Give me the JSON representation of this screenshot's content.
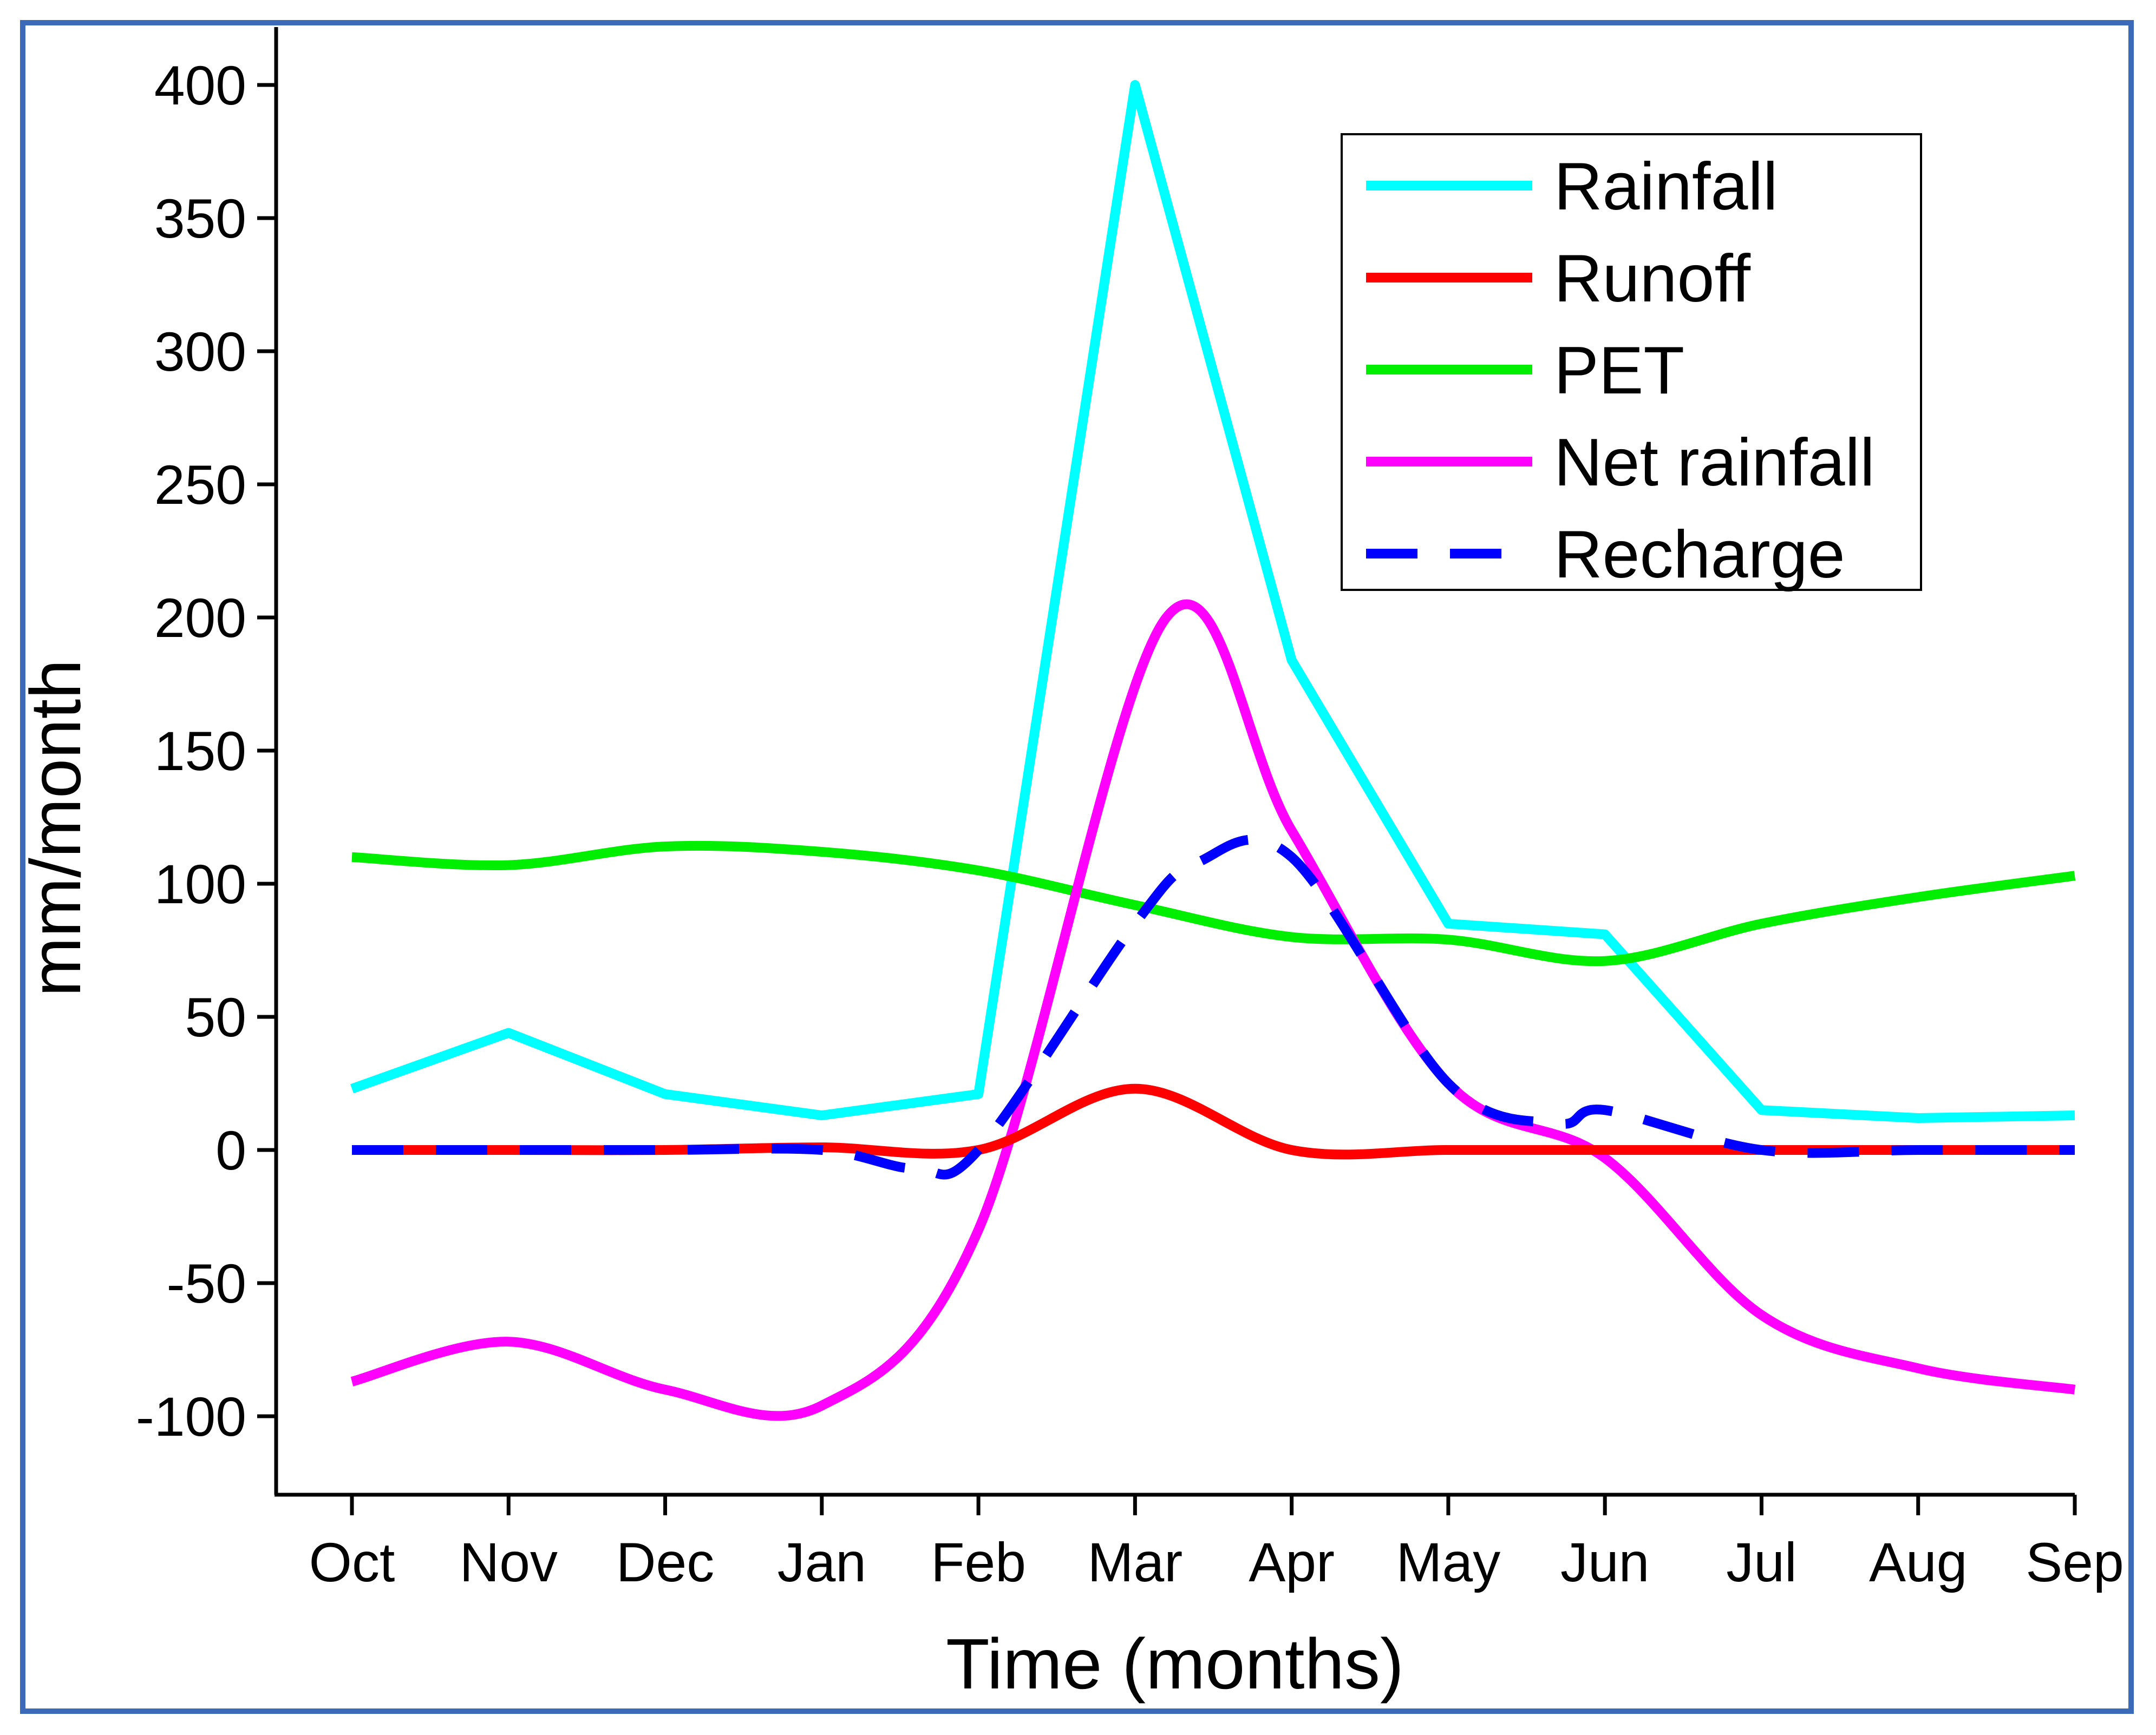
{
  "chart_data": {
    "type": "line",
    "title": "",
    "xlabel": "Time (months)",
    "ylabel": "mm/month",
    "categories": [
      "Oct",
      "Nov",
      "Dec",
      "Jan",
      "Feb",
      "Mar",
      "Apr",
      "May",
      "Jun",
      "Jul",
      "Aug",
      "Sep"
    ],
    "ylim": [
      -130,
      420
    ],
    "yticks": [
      -100,
      -50,
      0,
      50,
      100,
      150,
      200,
      250,
      300,
      350,
      400
    ],
    "grid": false,
    "legend_position": "top-right",
    "series": [
      {
        "name": "Rainfall",
        "color": "#00ffff",
        "style": "solid",
        "smooth": false,
        "points": [
          [
            0,
            23
          ],
          [
            1,
            44
          ],
          [
            2,
            21
          ],
          [
            3,
            13
          ],
          [
            4,
            21
          ],
          [
            5,
            400
          ],
          [
            6,
            184
          ],
          [
            7,
            85
          ],
          [
            8,
            81
          ],
          [
            9,
            15
          ],
          [
            10,
            12
          ],
          [
            11,
            13
          ]
        ]
      },
      {
        "name": "Runoff",
        "color": "#ff0000",
        "style": "solid",
        "smooth": true,
        "points": [
          [
            0,
            0
          ],
          [
            1,
            0
          ],
          [
            2,
            0
          ],
          [
            3,
            1
          ],
          [
            4,
            0
          ],
          [
            5,
            23
          ],
          [
            6,
            0
          ],
          [
            7,
            0
          ],
          [
            8,
            0
          ],
          [
            9,
            0
          ],
          [
            10,
            0
          ],
          [
            11,
            0
          ]
        ]
      },
      {
        "name": "PET",
        "color": "#00ee00",
        "style": "solid",
        "smooth": true,
        "points": [
          [
            0,
            110
          ],
          [
            1,
            107
          ],
          [
            2,
            114
          ],
          [
            3,
            112
          ],
          [
            4,
            105
          ],
          [
            5,
            92
          ],
          [
            6,
            80
          ],
          [
            7,
            79
          ],
          [
            8,
            71
          ],
          [
            9,
            85
          ],
          [
            10,
            95
          ],
          [
            11,
            103
          ]
        ]
      },
      {
        "name": "Net rainfall",
        "color": "#ff00ff",
        "style": "solid",
        "smooth": true,
        "points": [
          [
            0,
            -87
          ],
          [
            1,
            -72
          ],
          [
            2,
            -90
          ],
          [
            3,
            -96
          ],
          [
            4,
            -30
          ],
          [
            5.2,
            200
          ],
          [
            6,
            120
          ],
          [
            7,
            25
          ],
          [
            8,
            -3
          ],
          [
            9,
            -62
          ],
          [
            10,
            -82
          ],
          [
            11,
            -90
          ]
        ]
      },
      {
        "name": "Recharge",
        "color": "#0000ff",
        "style": "dashed",
        "smooth": true,
        "points": [
          [
            0,
            0
          ],
          [
            1,
            0
          ],
          [
            2,
            0
          ],
          [
            3,
            0
          ],
          [
            3.6,
            -7
          ],
          [
            4,
            0
          ],
          [
            5,
            85
          ],
          [
            5.4,
            108
          ],
          [
            6,
            110
          ],
          [
            7,
            25
          ],
          [
            7.7,
            10
          ],
          [
            8,
            15
          ],
          [
            9,
            0
          ],
          [
            10,
            0
          ],
          [
            11,
            0
          ]
        ]
      }
    ]
  }
}
